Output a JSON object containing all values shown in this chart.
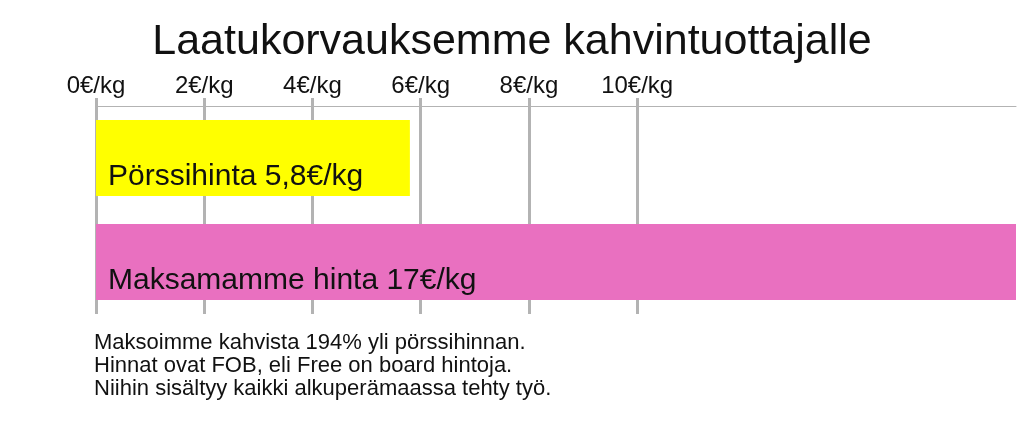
{
  "chart_data": {
    "type": "bar",
    "orientation": "horizontal",
    "title": "Laatukorvauksemme kahvintuottajalle",
    "categories": [
      "Pörssihinta",
      "Maksamamme hinta"
    ],
    "values": [
      5.8,
      17
    ],
    "colors": [
      "#ffff00",
      "#e970c0"
    ],
    "value_labels": [
      "5,8€/kg",
      "17€/kg"
    ],
    "xlim": [
      0,
      17
    ],
    "xticks": [
      {
        "value": 0,
        "label": "0€/kg"
      },
      {
        "value": 2,
        "label": "2€/kg"
      },
      {
        "value": 4,
        "label": "4€/kg"
      },
      {
        "value": 6,
        "label": "6€/kg"
      },
      {
        "value": 8,
        "label": "8€/kg"
      },
      {
        "value": 10,
        "label": "10€/kg"
      }
    ],
    "grid": "x",
    "tick_labels": "x",
    "annotations": [
      "Maksoimme kahvista 194% yli pörssihinnan.",
      "Hinnat ovat FOB, eli Free on board hintoja.",
      "Niihin sisältyy kaikki alkuperämaassa tehty työ."
    ]
  }
}
